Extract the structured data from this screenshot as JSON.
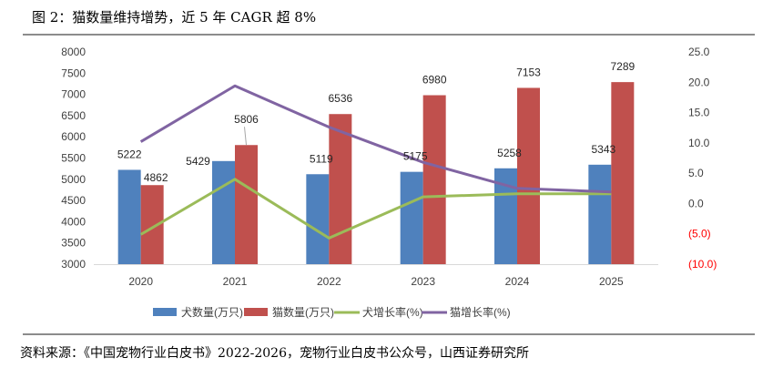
{
  "figure": {
    "title": "图 2：猫数量维持增势，近 5 年 CAGR 超 8%",
    "source": "资料来源：《中国宠物行业白皮书》2022-2026，宠物行业白皮书公众号，山西证券研究所"
  },
  "chart_data": {
    "type": "bar",
    "title": "猫数量维持增势，近 5 年 CAGR 超 8%",
    "categories": [
      "2020",
      "2021",
      "2022",
      "2023",
      "2024",
      "2025"
    ],
    "series": [
      {
        "name": "犬数量(万只)",
        "type": "bar",
        "axis": "left",
        "color": "#4f81bd",
        "values": [
          5222,
          5429,
          5119,
          5175,
          5258,
          5343
        ]
      },
      {
        "name": "猫数量(万只)",
        "type": "bar",
        "axis": "left",
        "color": "#c0504d",
        "values": [
          4862,
          5806,
          6536,
          6980,
          7153,
          7289
        ]
      },
      {
        "name": "犬增长率(%)",
        "type": "line",
        "axis": "right",
        "color": "#9bbb59",
        "values": [
          -5.1,
          4.0,
          -5.7,
          1.1,
          1.6,
          1.6
        ]
      },
      {
        "name": "猫增长率(%)",
        "type": "line",
        "axis": "right",
        "color": "#8064a2",
        "values": [
          10.2,
          19.4,
          12.6,
          6.8,
          2.5,
          1.9
        ]
      }
    ],
    "left_axis": {
      "ylim": [
        3000,
        8000
      ],
      "ticks": [
        "3000",
        "3500",
        "4000",
        "4500",
        "5000",
        "5500",
        "6000",
        "6500",
        "7000",
        "7500",
        "8000"
      ]
    },
    "right_axis": {
      "ylim": [
        -10,
        25
      ],
      "ticks": [
        "(10.0)",
        "(5.0)",
        "0.0",
        "5.0",
        "10.0",
        "15.0",
        "20.0",
        "25.0"
      ],
      "negative_color": "#ff0000"
    },
    "xlabel": "",
    "ylabel": "",
    "grid": false,
    "legend": "bottom"
  }
}
